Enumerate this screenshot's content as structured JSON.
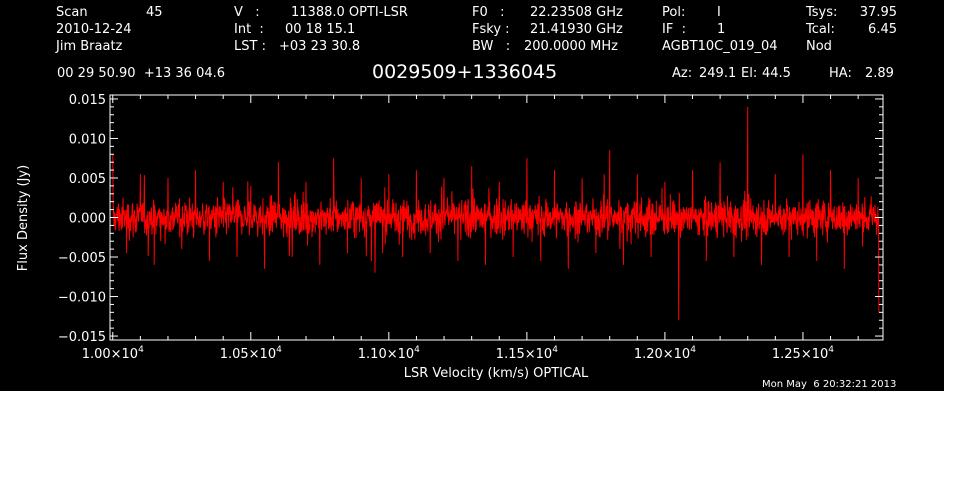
{
  "header": {
    "scan_label": "Scan",
    "scan_value": "45",
    "date": "2010-12-24",
    "observer": "Jim Braatz",
    "v_label": "V   :",
    "v_value": "11388.0 OPTI-LSR",
    "int_label": "Int  :",
    "int_value": "00 18 15.1",
    "lst_label": "LST :",
    "lst_value": "+03 23 30.8",
    "f0_label": "F0   :",
    "f0_value": "22.23508 GHz",
    "fsky_label": "Fsky :",
    "fsky_value": "21.41930 GHz",
    "bw_label": "BW   :",
    "bw_value": "200.0000 MHz",
    "pol_label": "Pol:",
    "pol_value": "I",
    "if_label": "IF  :",
    "if_value": "1",
    "project": "AGBT10C_019_04",
    "tsys_label": "Tsys:",
    "tsys_value": "37.95",
    "tcal_label": "Tcal:",
    "tcal_value": "6.45",
    "procedure": "Nod",
    "coords": "00 29 50.90  +13 36 04.6",
    "source": "0029509+1336045",
    "az_label": "Az:",
    "az_value": "249.1",
    "el_label": "El:",
    "el_value": "44.5",
    "ha_label": "HA:",
    "ha_value": "2.89",
    "timestamp": "Mon May  6 20:32:21 2013"
  },
  "chart_data": {
    "type": "line",
    "title": "0029509+1336045",
    "xlabel": "LSR Velocity (km/s) OPTICAL",
    "ylabel": "Flux Density (Jy)",
    "xlim": [
      9990,
      12790
    ],
    "ylim": [
      -0.0155,
      0.0155
    ],
    "x_ticks": [
      10000,
      10500,
      11000,
      11500,
      12000,
      12500
    ],
    "x_tick_labels": [
      {
        "mantissa": "1.00×10",
        "exponent": "4"
      },
      {
        "mantissa": "1.05×10",
        "exponent": "4"
      },
      {
        "mantissa": "1.10×10",
        "exponent": "4"
      },
      {
        "mantissa": "1.15×10",
        "exponent": "4"
      },
      {
        "mantissa": "1.20×10",
        "exponent": "4"
      },
      {
        "mantissa": "1.25×10",
        "exponent": "4"
      }
    ],
    "y_ticks": [
      -0.015,
      -0.01,
      -0.005,
      0.0,
      0.005,
      0.01,
      0.015
    ],
    "y_tick_labels": [
      "−0.015",
      "−0.010",
      "−0.005",
      "0.000",
      "0.005",
      "0.010",
      "0.015"
    ],
    "series": [
      {
        "color": "#ff0000",
        "x_range": [
          10000,
          12775
        ],
        "y_range": [
          -0.0135,
          0.0141
        ],
        "x": [
          10000,
          10050,
          10100,
          10150,
          10200,
          10250,
          10300,
          10350,
          10400,
          10450,
          10500,
          10550,
          10600,
          10650,
          10700,
          10750,
          10800,
          10850,
          10900,
          10950,
          11000,
          11050,
          11100,
          11150,
          11200,
          11250,
          11300,
          11350,
          11400,
          11450,
          11500,
          11550,
          11600,
          11650,
          11700,
          11750,
          11800,
          11850,
          11900,
          11950,
          12000,
          12050,
          12100,
          12150,
          12200,
          12250,
          12300,
          12350,
          12400,
          12450,
          12500,
          12550,
          12600,
          12650,
          12700,
          12775
        ],
        "y": [
          0.008,
          -0.0045,
          0.0055,
          -0.006,
          0.005,
          -0.004,
          0.006,
          -0.0055,
          0.0045,
          -0.005,
          0.004,
          -0.0065,
          0.007,
          -0.005,
          0.0045,
          -0.006,
          0.0075,
          -0.0045,
          0.005,
          -0.007,
          0.0055,
          -0.005,
          0.006,
          -0.0045,
          0.005,
          -0.0055,
          0.0065,
          -0.006,
          0.0045,
          -0.005,
          0.0075,
          -0.0055,
          0.006,
          -0.0065,
          0.005,
          -0.0045,
          0.0085,
          -0.006,
          0.0055,
          -0.005,
          0.0045,
          -0.013,
          0.006,
          -0.0055,
          0.007,
          -0.005,
          0.014,
          -0.006,
          0.0055,
          -0.005,
          0.008,
          -0.0055,
          0.006,
          -0.0065,
          0.005,
          -0.012
        ]
      }
    ],
    "background": "#000000",
    "axis_color": "#ffffff",
    "grid": false
  }
}
